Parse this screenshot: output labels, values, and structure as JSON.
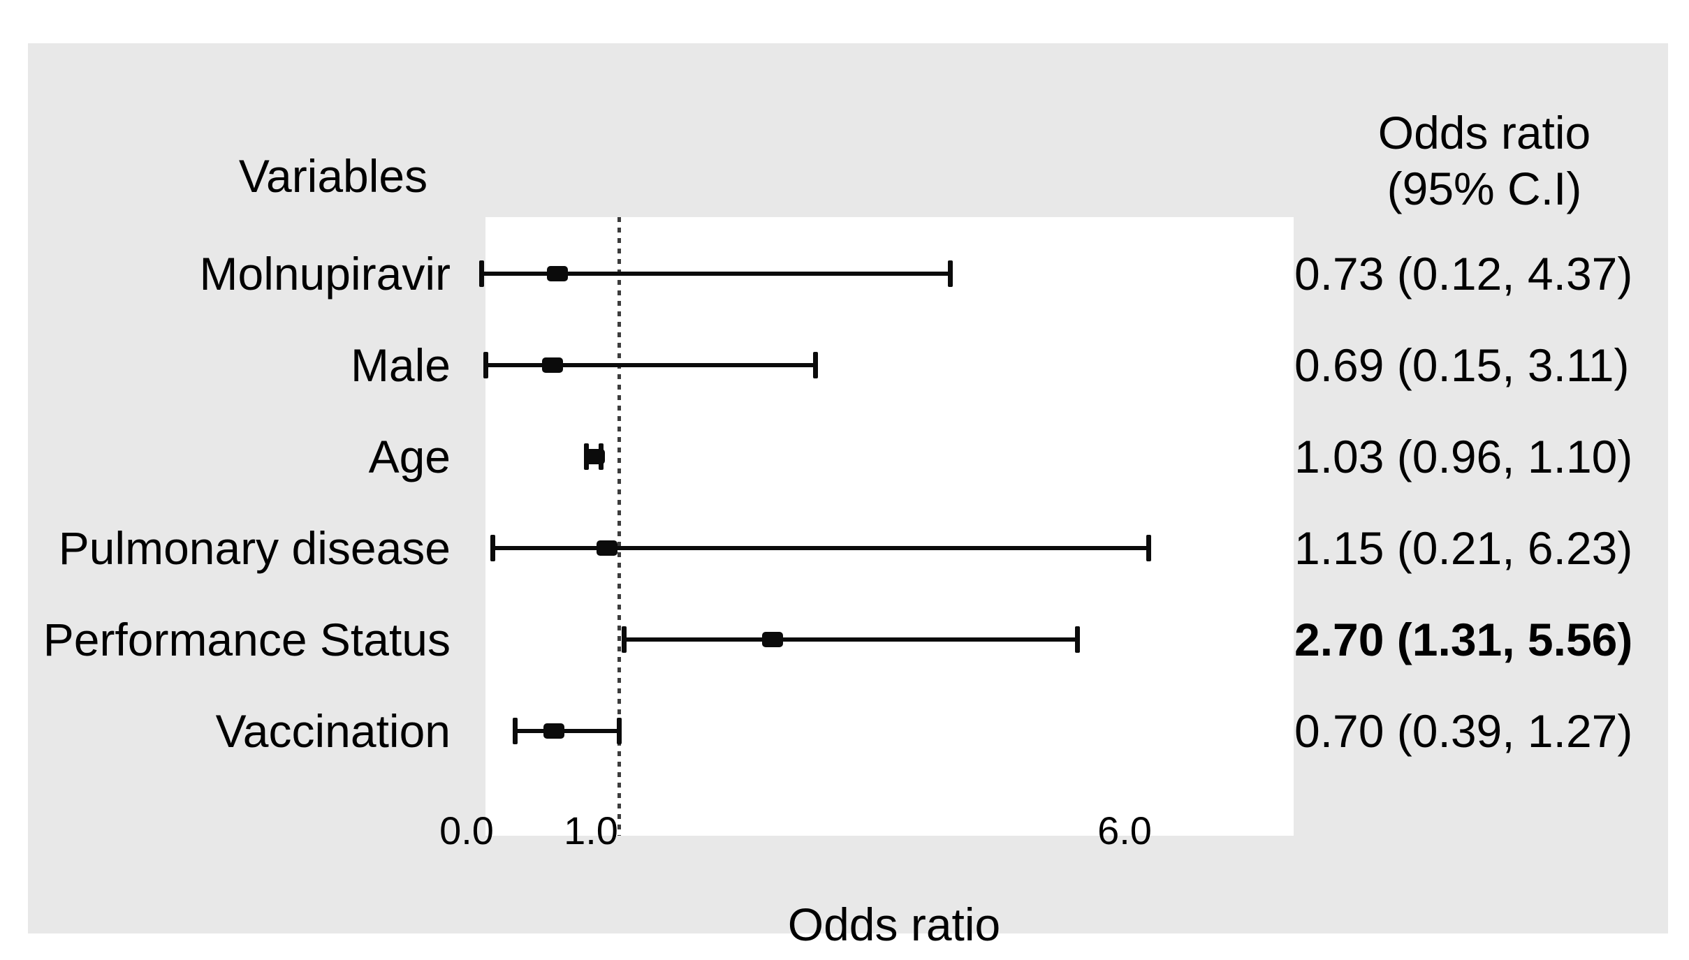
{
  "figure": {
    "panel_background": "#e8e8e8",
    "plot_background": "#ffffff",
    "ink_color": "#0b0b0b"
  },
  "headers": {
    "variables": "Variables",
    "odds_ratio_line1": "Odds ratio",
    "odds_ratio_line2": "(95% C.I)"
  },
  "chart_data": {
    "type": "forest",
    "title": "",
    "xlabel": "Odds ratio",
    "left_column_header": "Variables",
    "right_column_header": "Odds ratio (95% C.I)",
    "axis": {
      "ticks": [
        {
          "label": "0.0",
          "value": 0.0
        },
        {
          "label": "1.0",
          "value": 1.0
        },
        {
          "label": "6.0",
          "value": 6.0
        }
      ],
      "reference_line_value": 1.0,
      "reference_line_style": "dotted",
      "grid": false
    },
    "rows": [
      {
        "label": "Molnupiravir",
        "or": 0.73,
        "ci_low": 0.12,
        "ci_high": 4.37,
        "or_text": "0.73 (0.12, 4.37)",
        "bold": false
      },
      {
        "label": "Male",
        "or": 0.69,
        "ci_low": 0.15,
        "ci_high": 3.11,
        "or_text": "0.69 (0.15, 3.11)",
        "bold": false
      },
      {
        "label": "Age",
        "or": 1.03,
        "ci_low": 0.96,
        "ci_high": 1.1,
        "or_text": "1.03 (0.96, 1.10)",
        "bold": false
      },
      {
        "label": "Pulmonary disease",
        "or": 1.15,
        "ci_low": 0.21,
        "ci_high": 6.23,
        "or_text": "1.15 (0.21, 6.23)",
        "bold": false
      },
      {
        "label": "Performance Status",
        "or": 2.7,
        "ci_low": 1.31,
        "ci_high": 5.56,
        "or_text": "2.70 (1.31, 5.56)",
        "bold": true
      },
      {
        "label": "Vaccination",
        "or": 0.7,
        "ci_low": 0.39,
        "ci_high": 1.27,
        "or_text": "0.70 (0.39, 1.27)",
        "bold": false
      }
    ]
  }
}
